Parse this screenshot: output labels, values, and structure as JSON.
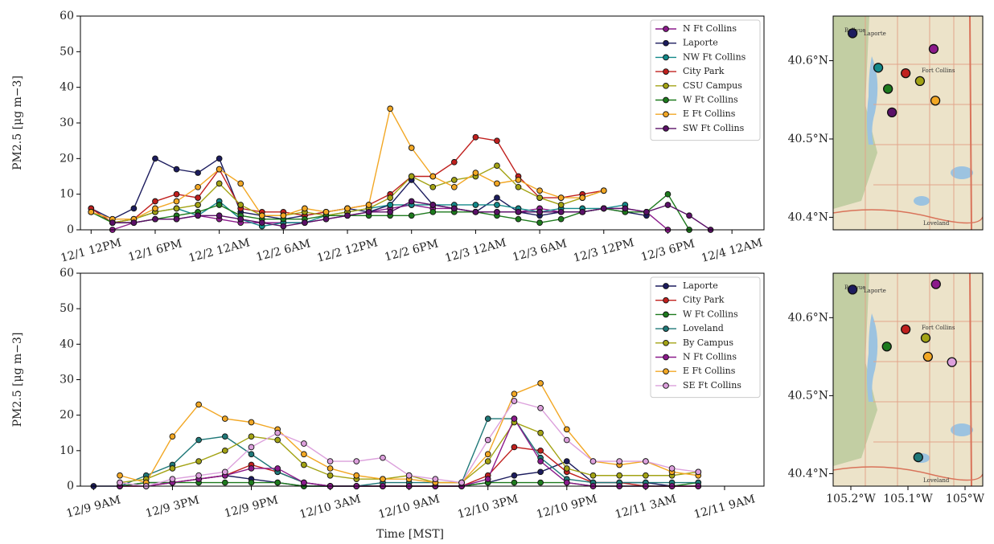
{
  "chart_data": [
    {
      "type": "line",
      "ylabel": "PM2.5 [μg m−3]",
      "x": [
        "12/1 12PM",
        "12/1 2PM",
        "12/1 4PM",
        "12/1 6PM",
        "12/1 8PM",
        "12/1 10PM",
        "12/2 12AM",
        "12/2 2AM",
        "12/2 4AM",
        "12/2 6AM",
        "12/2 8AM",
        "12/2 10AM",
        "12/2 12PM",
        "12/2 2PM",
        "12/2 4PM",
        "12/2 6PM",
        "12/2 8PM",
        "12/2 10PM",
        "12/3 12AM",
        "12/3 2AM",
        "12/3 4AM",
        "12/3 6AM",
        "12/3 8AM",
        "12/3 10AM",
        "12/3 12PM",
        "12/3 2PM",
        "12/3 4PM",
        "12/3 6PM",
        "12/3 8PM",
        "12/3 10PM"
      ],
      "xlim": [
        "12/1 11AM",
        "12/4 3AM"
      ],
      "xticks": [
        "12/1 12PM",
        "12/1 6PM",
        "12/2 12AM",
        "12/2 6AM",
        "12/2 12PM",
        "12/2 6PM",
        "12/3 12AM",
        "12/3 6AM",
        "12/3 12PM",
        "12/3 6PM",
        "12/4 12AM"
      ],
      "ylim": [
        0,
        60
      ],
      "yticks": [
        0,
        10,
        20,
        30,
        40,
        50,
        60
      ],
      "legend": "upper right",
      "series": [
        {
          "name": "N Ft Collins",
          "color": "#8b1a8b",
          "values": [
            null,
            0,
            2,
            3,
            3,
            4,
            3,
            2,
            2,
            2,
            2,
            3,
            4,
            5,
            6,
            7,
            6,
            6,
            5,
            5,
            5,
            6,
            5,
            5,
            6,
            6,
            5,
            0,
            null,
            null
          ]
        },
        {
          "name": "Laporte",
          "color": "#1c1c5e",
          "values": [
            6,
            3,
            6,
            20,
            17,
            16,
            20,
            5,
            4,
            3,
            4,
            5,
            6,
            5,
            7,
            14,
            7,
            6,
            5,
            9,
            5,
            4,
            5,
            5,
            6,
            5,
            4,
            null,
            null,
            null
          ]
        },
        {
          "name": "NW Ft Collins",
          "color": "#138a8a",
          "values": [
            5,
            2,
            3,
            5,
            6,
            4,
            8,
            3,
            1,
            2,
            2,
            4,
            5,
            6,
            7,
            7,
            7,
            7,
            7,
            7,
            6,
            5,
            6,
            6,
            6,
            7,
            null,
            null,
            null,
            null
          ]
        },
        {
          "name": "City Park",
          "color": "#c0201e",
          "values": [
            6,
            2,
            3,
            8,
            10,
            9,
            17,
            6,
            5,
            5,
            4,
            5,
            6,
            7,
            10,
            15,
            15,
            19,
            26,
            25,
            15,
            9,
            9,
            10,
            11,
            null,
            null,
            null,
            null,
            null
          ]
        },
        {
          "name": "CSU Campus",
          "color": "#a3a314",
          "values": [
            5,
            2,
            3,
            5,
            6,
            7,
            13,
            7,
            4,
            4,
            5,
            4,
            5,
            6,
            9,
            15,
            12,
            14,
            15,
            18,
            12,
            9,
            7,
            9,
            11,
            null,
            null,
            null,
            null,
            null
          ]
        },
        {
          "name": "W Ft Collins",
          "color": "#1d7a1d",
          "values": [
            5,
            2,
            2,
            3,
            4,
            5,
            7,
            4,
            3,
            3,
            3,
            4,
            4,
            4,
            4,
            4,
            5,
            5,
            5,
            4,
            3,
            2,
            3,
            5,
            6,
            5,
            5,
            10,
            0,
            null
          ]
        },
        {
          "name": "E Ft Collins",
          "color": "#f2a724",
          "values": [
            5,
            3,
            3,
            6,
            8,
            12,
            17,
            13,
            4,
            4,
            6,
            5,
            6,
            7,
            34,
            23,
            15,
            12,
            16,
            13,
            14,
            11,
            9,
            9,
            11,
            null,
            null,
            null,
            null,
            null
          ]
        },
        {
          "name": "SW Ft Collins",
          "color": "#5b1068",
          "values": [
            null,
            2,
            2,
            3,
            3,
            4,
            4,
            3,
            2,
            1,
            2,
            3,
            4,
            5,
            5,
            8,
            7,
            6,
            5,
            5,
            5,
            5,
            5,
            5,
            6,
            6,
            5,
            7,
            4,
            0
          ]
        }
      ]
    },
    {
      "type": "scatter",
      "xlim": [
        -105.231,
        -104.969
      ],
      "ylim": [
        40.384,
        40.657
      ],
      "yticks": [
        {
          "value": 40.4,
          "label": "40.4°N"
        },
        {
          "value": 40.5,
          "label": "40.5°N"
        },
        {
          "value": 40.6,
          "label": "40.6°N"
        }
      ],
      "place_labels": [
        "Bellvue",
        "Laporte",
        "Fort Collins",
        "Loveland"
      ],
      "series": [
        {
          "color": "#8b1a8b",
          "x": [
            -105.055
          ],
          "values": [
            40.615
          ]
        },
        {
          "color": "#1c1c5e",
          "x": [
            -105.197
          ],
          "values": [
            40.635
          ]
        },
        {
          "color": "#138a8a",
          "x": [
            -105.152
          ],
          "values": [
            40.591
          ]
        },
        {
          "color": "#c0201e",
          "x": [
            -105.104
          ],
          "values": [
            40.584
          ]
        },
        {
          "color": "#a3a314",
          "x": [
            -105.079
          ],
          "values": [
            40.574
          ]
        },
        {
          "color": "#1d7a1d",
          "x": [
            -105.135
          ],
          "values": [
            40.564
          ]
        },
        {
          "color": "#f2a724",
          "x": [
            -105.052
          ],
          "values": [
            40.549
          ]
        },
        {
          "color": "#5b1068",
          "x": [
            -105.128
          ],
          "values": [
            40.534
          ]
        }
      ]
    },
    {
      "type": "line",
      "ylabel": "PM2.5 [μg m−3]",
      "xlabel": "Time [MST]",
      "x": [
        "12/9 9AM",
        "12/9 11AM",
        "12/9 1PM",
        "12/9 3PM",
        "12/9 5PM",
        "12/9 7PM",
        "12/9 9PM",
        "12/9 11PM",
        "12/10 1AM",
        "12/10 3AM",
        "12/10 5AM",
        "12/10 7AM",
        "12/10 9AM",
        "12/10 11AM",
        "12/10 1PM",
        "12/10 3PM",
        "12/10 5PM",
        "12/10 7PM",
        "12/10 9PM",
        "12/10 11PM",
        "12/11 1AM",
        "12/11 3AM",
        "12/11 5AM",
        "12/11 7AM"
      ],
      "xlim": [
        "12/9 8AM",
        "12/11 12PM"
      ],
      "xticks": [
        "12/9 9AM",
        "12/9 3PM",
        "12/9 9PM",
        "12/10 3AM",
        "12/10 9AM",
        "12/10 3PM",
        "12/10 9PM",
        "12/11 3AM",
        "12/11 9AM"
      ],
      "ylim": [
        0,
        60
      ],
      "yticks": [
        0,
        10,
        20,
        30,
        40,
        50,
        60
      ],
      "legend": "upper right",
      "series": [
        {
          "name": "Laporte",
          "color": "#1c1c5e",
          "values": [
            0,
            0,
            1,
            1,
            2,
            3,
            2,
            1,
            0,
            0,
            0,
            0,
            0,
            0,
            0,
            1,
            3,
            4,
            7,
            1,
            1,
            1,
            0,
            0
          ]
        },
        {
          "name": "City Park",
          "color": "#c0201e",
          "values": [
            null,
            0,
            0,
            1,
            2,
            3,
            6,
            4,
            1,
            0,
            0,
            0,
            0,
            0,
            0,
            3,
            11,
            10,
            4,
            1,
            1,
            0,
            0,
            0
          ]
        },
        {
          "name": "W Ft Collins",
          "color": "#1d7a1d",
          "values": [
            null,
            0,
            1,
            1,
            1,
            1,
            1,
            1,
            0,
            0,
            0,
            0,
            0,
            0,
            0,
            1,
            1,
            1,
            1,
            0,
            0,
            0,
            0,
            1
          ]
        },
        {
          "name": "Loveland",
          "color": "#1f7878",
          "values": [
            null,
            0,
            3,
            6,
            13,
            14,
            9,
            4,
            1,
            0,
            0,
            1,
            1,
            1,
            1,
            19,
            19,
            8,
            2,
            1,
            1,
            1,
            1,
            1
          ]
        },
        {
          "name": "By Campus",
          "color": "#a3a314",
          "values": [
            null,
            1,
            2,
            5,
            7,
            10,
            14,
            13,
            6,
            3,
            2,
            2,
            3,
            1,
            1,
            7,
            18,
            15,
            5,
            3,
            3,
            3,
            3,
            4
          ]
        },
        {
          "name": "N Ft Collins",
          "color": "#8b1a8b",
          "values": [
            null,
            0,
            0,
            1,
            2,
            3,
            5,
            5,
            1,
            0,
            0,
            0,
            0,
            0,
            0,
            2,
            19,
            7,
            1,
            0,
            0,
            0,
            0,
            0
          ]
        },
        {
          "name": "E Ft Collins",
          "color": "#f2a724",
          "values": [
            null,
            3,
            1,
            14,
            23,
            19,
            18,
            16,
            9,
            5,
            3,
            2,
            2,
            1,
            1,
            9,
            26,
            29,
            16,
            7,
            6,
            7,
            4,
            3
          ]
        },
        {
          "name": "SE Ft Collins",
          "color": "#dca0dc",
          "values": [
            null,
            1,
            0,
            2,
            3,
            4,
            11,
            15,
            12,
            7,
            7,
            8,
            3,
            2,
            1,
            13,
            24,
            22,
            13,
            7,
            7,
            7,
            5,
            4
          ]
        }
      ]
    },
    {
      "type": "scatter",
      "xlim": [
        -105.231,
        -104.969
      ],
      "ylim": [
        40.384,
        40.657
      ],
      "yticks": [
        {
          "value": 40.4,
          "label": "40.4°N"
        },
        {
          "value": 40.5,
          "label": "40.5°N"
        },
        {
          "value": 40.6,
          "label": "40.6°N"
        }
      ],
      "xticks": [
        {
          "value": -105.2,
          "label": "105.2°W"
        },
        {
          "value": -105.1,
          "label": "105.1°W"
        },
        {
          "value": -105.0,
          "label": "105°W"
        }
      ],
      "place_labels": [
        "Bellvue",
        "Laporte",
        "Fort Collins",
        "Loveland"
      ],
      "series": [
        {
          "color": "#1c1c5e",
          "x": [
            -105.197
          ],
          "values": [
            40.636
          ]
        },
        {
          "color": "#c0201e",
          "x": [
            -105.104
          ],
          "values": [
            40.585
          ]
        },
        {
          "color": "#1d7a1d",
          "x": [
            -105.137
          ],
          "values": [
            40.563
          ]
        },
        {
          "color": "#1f7878",
          "x": [
            -105.082
          ],
          "values": [
            40.421
          ]
        },
        {
          "color": "#a3a314",
          "x": [
            -105.069
          ],
          "values": [
            40.574
          ]
        },
        {
          "color": "#8b1a8b",
          "x": [
            -105.051
          ],
          "values": [
            40.643
          ]
        },
        {
          "color": "#f2a724",
          "x": [
            -105.065
          ],
          "values": [
            40.55
          ]
        },
        {
          "color": "#dca0dc",
          "x": [
            -105.023
          ],
          "values": [
            40.543
          ]
        }
      ]
    }
  ]
}
